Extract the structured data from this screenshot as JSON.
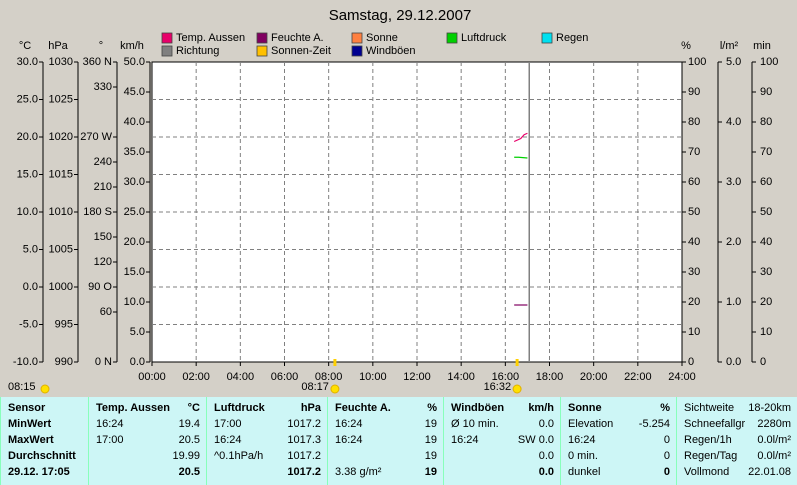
{
  "chart_data": {
    "type": "line",
    "title": "Samstag, 29.12.2007",
    "series": [
      {
        "name": "Temp. Aussen",
        "color": "#e8006a",
        "axis": "°C",
        "x": [
          16.4,
          16.7,
          16.85,
          17.0
        ],
        "values": [
          19.4,
          19.8,
          20.3,
          20.5
        ]
      },
      {
        "name": "Feuchte A.",
        "color": "#800060",
        "axis": "%",
        "x": [
          16.4,
          17.0
        ],
        "values": [
          19,
          19
        ]
      },
      {
        "name": "Sonne",
        "color": "#ff8040",
        "axis": "%",
        "x": [],
        "values": []
      },
      {
        "name": "Luftdruck",
        "color": "#00d000",
        "axis": "hPa",
        "x": [
          16.4,
          16.6,
          17.0
        ],
        "values": [
          1017.3,
          1017.3,
          1017.2
        ]
      },
      {
        "name": "Regen",
        "color": "#00e0f0",
        "axis": "l/m²",
        "x": [],
        "values": []
      },
      {
        "name": "Richtung",
        "color": "#808080",
        "axis": "°",
        "x": [],
        "values": []
      },
      {
        "name": "Sonnen-Zeit",
        "color": "#ffc000",
        "axis": "min",
        "x": [],
        "values": []
      },
      {
        "name": "Windböen",
        "color": "#000090",
        "axis": "km/h",
        "x": [],
        "values": []
      }
    ],
    "axes": [
      {
        "label": "°C",
        "lim": [
          -10,
          30
        ],
        "ticks": [
          {
            "value": -10,
            "label": "-10.0"
          },
          {
            "value": -5,
            "label": "-5.0"
          },
          {
            "value": 0,
            "label": "0.0"
          },
          {
            "value": 5,
            "label": "5.0"
          },
          {
            "value": 10,
            "label": "10.0"
          },
          {
            "value": 15,
            "label": "15.0"
          },
          {
            "value": 20,
            "label": "20.0"
          },
          {
            "value": 25,
            "label": "25.0"
          },
          {
            "value": 30,
            "label": "30.0"
          }
        ]
      },
      {
        "label": "hPa",
        "lim": [
          990,
          1030
        ],
        "ticks": [
          990,
          995,
          1000,
          1005,
          1010,
          1015,
          1020,
          1025,
          1030
        ]
      },
      {
        "label": "°",
        "lim": [
          0,
          360
        ],
        "ticks": [
          {
            "value": 0,
            "label": "0 N"
          },
          60,
          {
            "value": 90,
            "label": "90 O"
          },
          120,
          150,
          {
            "value": 180,
            "label": "180 S"
          },
          210,
          240,
          {
            "value": 270,
            "label": "270 W"
          },
          330,
          {
            "value": 360,
            "label": "360 N"
          }
        ]
      },
      {
        "label": "km/h",
        "lim": [
          0,
          50
        ],
        "ticks": [
          {
            "value": 0,
            "label": "0.0"
          },
          {
            "value": 5,
            "label": "5.0"
          },
          {
            "value": 10,
            "label": "10.0"
          },
          {
            "value": 15,
            "label": "15.0"
          },
          {
            "value": 20,
            "label": "20.0"
          },
          {
            "value": 25,
            "label": "25.0"
          },
          {
            "value": 30,
            "label": "30.0"
          },
          {
            "value": 35,
            "label": "35.0"
          },
          {
            "value": 40,
            "label": "40.0"
          },
          {
            "value": 45,
            "label": "45.0"
          },
          {
            "value": 50,
            "label": "50.0"
          }
        ]
      },
      {
        "label": "%",
        "lim": [
          0,
          100
        ],
        "ticks": [
          0,
          10,
          20,
          30,
          40,
          50,
          60,
          70,
          80,
          90,
          100
        ]
      },
      {
        "label": "l/m²",
        "lim": [
          0,
          5
        ],
        "ticks": [
          {
            "value": 0,
            "label": "0.0"
          },
          {
            "value": 1,
            "label": "1.0"
          },
          {
            "value": 2,
            "label": "2.0"
          },
          {
            "value": 3,
            "label": "3.0"
          },
          {
            "value": 4,
            "label": "4.0"
          },
          {
            "value": 5,
            "label": "5.0"
          }
        ]
      },
      {
        "label": "min",
        "lim": [
          0,
          100
        ],
        "ticks": [
          0,
          10,
          20,
          30,
          40,
          50,
          60,
          70,
          80,
          90,
          100
        ]
      }
    ],
    "xlim": [
      0,
      24
    ],
    "xticks": [
      {
        "value": 0,
        "label": "00:00"
      },
      {
        "value": 2,
        "label": "02:00"
      },
      {
        "value": 4,
        "label": "04:00"
      },
      {
        "value": 6,
        "label": "06:00"
      },
      {
        "value": 8,
        "label": "08:00"
      },
      {
        "value": 10,
        "label": "10:00"
      },
      {
        "value": 12,
        "label": "12:00"
      },
      {
        "value": 14,
        "label": "14:00"
      },
      {
        "value": 16,
        "label": "16:00"
      },
      {
        "value": 18,
        "label": "18:00"
      },
      {
        "value": 20,
        "label": "20:00"
      },
      {
        "value": 22,
        "label": "22:00"
      },
      {
        "value": 24,
        "label": "24:00"
      }
    ],
    "grid": true,
    "cursor_x": 17.083,
    "sun": {
      "label": "08:15",
      "events": [
        {
          "x": 8.283,
          "label": "08:17"
        },
        {
          "x": 16.533,
          "label": "16:32"
        }
      ]
    }
  },
  "table": {
    "columns": [
      {
        "header": [
          "Sensor"
        ],
        "rows": [
          [
            "MinWert"
          ],
          [
            "MaxWert"
          ],
          [
            "Durchschnitt"
          ],
          [
            "29.12. 17:05"
          ]
        ]
      },
      {
        "header": [
          "Temp. Aussen",
          "°C"
        ],
        "rows": [
          [
            "16:24",
            "19.4"
          ],
          [
            "17:00",
            "20.5"
          ],
          [
            null,
            "19.99"
          ],
          [
            null,
            "20.5"
          ]
        ]
      },
      {
        "header": [
          "Luftdruck",
          "hPa"
        ],
        "rows": [
          [
            "17:00",
            "1017.2"
          ],
          [
            "16:24",
            "1017.3"
          ],
          [
            "^0.1hPa/h",
            "1017.2"
          ],
          [
            null,
            "1017.2"
          ]
        ]
      },
      {
        "header": [
          "Feuchte A.",
          "%"
        ],
        "rows": [
          [
            "16:24",
            "19"
          ],
          [
            "16:24",
            "19"
          ],
          [
            null,
            "19"
          ],
          [
            "3.38 g/m²",
            "19"
          ]
        ]
      },
      {
        "header": [
          "Windböen",
          "km/h"
        ],
        "rows": [
          [
            "Ø 10 min.",
            "0.0"
          ],
          [
            "16:24",
            "SW 0.0"
          ],
          [
            null,
            "0.0"
          ],
          [
            null,
            "0.0"
          ]
        ]
      },
      {
        "header": [
          "Sonne",
          "%"
        ],
        "rows": [
          [
            "Elevation",
            "-5.254"
          ],
          [
            "16:24",
            "0"
          ],
          [
            "0 min.",
            "0"
          ],
          [
            "dunkel",
            "0"
          ]
        ]
      },
      {
        "rows": [
          [
            "Sichtweite",
            "18-20km"
          ],
          [
            "Schneefallgr",
            "2280m"
          ],
          [
            "Regen/1h",
            "0.0l/m²"
          ],
          [
            "Regen/Tag",
            "0.0l/m²"
          ],
          [
            "Vollmond",
            "22.01.08"
          ]
        ]
      }
    ]
  }
}
